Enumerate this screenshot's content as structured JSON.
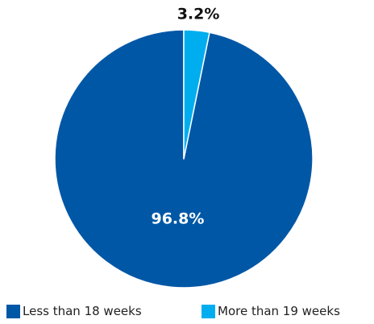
{
  "chart_data": {
    "type": "pie",
    "title": "",
    "slices": [
      {
        "name": "Less than 18 weeks",
        "value": 96.8,
        "label": "96.8%",
        "color": "#0057A6",
        "label_color": "#ffffff"
      },
      {
        "name": "More than 19 weeks",
        "value": 3.2,
        "label": "3.2%",
        "color": "#00AEEF",
        "label_color": "#111111"
      }
    ],
    "start_angle": "12 o'clock",
    "direction": "counter-clockwise for the large slice; small slice clockwise from top",
    "legend_position": "bottom"
  }
}
